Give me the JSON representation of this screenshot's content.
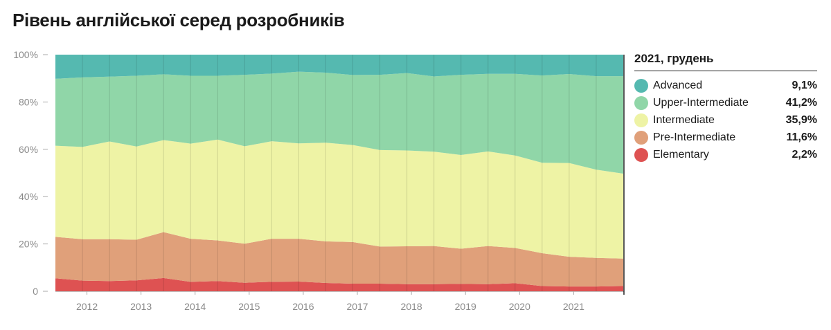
{
  "title": "Рівень англійської серед розробників",
  "colors": {
    "Advanced": "#55b9b0",
    "Upper-Intermediate": "#90d6a8",
    "Intermediate": "#eef3a5",
    "Pre-Intermediate": "#e0a07a",
    "Elementary": "#de5252"
  },
  "legend": {
    "title": "2021, грудень",
    "items": [
      {
        "label": "Advanced",
        "value": "9,1%"
      },
      {
        "label": "Upper-Intermediate",
        "value": "41,2%"
      },
      {
        "label": "Intermediate",
        "value": "35,9%"
      },
      {
        "label": "Pre-Intermediate",
        "value": "11,6%"
      },
      {
        "label": "Elementary",
        "value": "2,2%"
      }
    ]
  },
  "chart_data": {
    "type": "area",
    "stacked": true,
    "title": "Рівень англійської серед розробників",
    "x_tick_labels": [
      "2012",
      "2013",
      "2014",
      "2015",
      "2016",
      "2017",
      "2018",
      "2019",
      "2020",
      "2021"
    ],
    "y_tick_labels": [
      "0",
      "20%",
      "40%",
      "60%",
      "80%",
      "100%"
    ],
    "ylim": [
      0,
      100
    ],
    "grid": "vertical lines at each survey",
    "x": [
      "2011-06",
      "2011-12",
      "2012-06",
      "2012-12",
      "2013-06",
      "2013-12",
      "2014-06",
      "2014-12",
      "2015-06",
      "2015-12",
      "2016-06",
      "2016-12",
      "2017-06",
      "2017-12",
      "2018-06",
      "2018-12",
      "2019-06",
      "2019-12",
      "2020-06",
      "2020-12",
      "2021-06",
      "2021-12"
    ],
    "series": [
      {
        "name": "Elementary",
        "values": [
          5.5,
          4.5,
          4.3,
          4.6,
          5.6,
          4.0,
          4.3,
          3.6,
          4.0,
          4.1,
          3.5,
          3.2,
          3.2,
          3.0,
          3.0,
          3.1,
          3.0,
          3.4,
          2.2,
          2.0,
          2.0,
          2.2
        ]
      },
      {
        "name": "Pre-Intermediate",
        "values": [
          17.5,
          17.5,
          17.7,
          17.2,
          19.4,
          18.2,
          17.2,
          16.5,
          18.2,
          18.1,
          17.6,
          17.6,
          15.7,
          16.0,
          16.1,
          14.9,
          16.1,
          14.9,
          13.9,
          12.6,
          12.1,
          11.6
        ]
      },
      {
        "name": "Intermediate",
        "values": [
          38.5,
          39.0,
          41.3,
          39.4,
          38.9,
          40.2,
          42.6,
          41.2,
          41.2,
          40.3,
          41.7,
          41.0,
          40.8,
          40.5,
          39.9,
          39.6,
          40.0,
          39.1,
          38.2,
          39.6,
          37.3,
          35.9
        ]
      },
      {
        "name": "Upper-Intermediate",
        "values": [
          28.3,
          29.4,
          27.4,
          29.9,
          27.8,
          28.7,
          27.0,
          30.2,
          28.6,
          30.3,
          29.6,
          29.6,
          31.8,
          32.7,
          31.8,
          33.9,
          32.8,
          34.5,
          36.9,
          37.6,
          39.5,
          41.2
        ]
      },
      {
        "name": "Advanced",
        "values": [
          10.2,
          9.6,
          9.3,
          8.9,
          8.3,
          8.9,
          8.9,
          8.5,
          8.0,
          7.2,
          7.6,
          8.6,
          8.5,
          7.8,
          9.2,
          8.5,
          8.1,
          8.1,
          8.8,
          8.2,
          9.1,
          9.1
        ]
      }
    ]
  }
}
